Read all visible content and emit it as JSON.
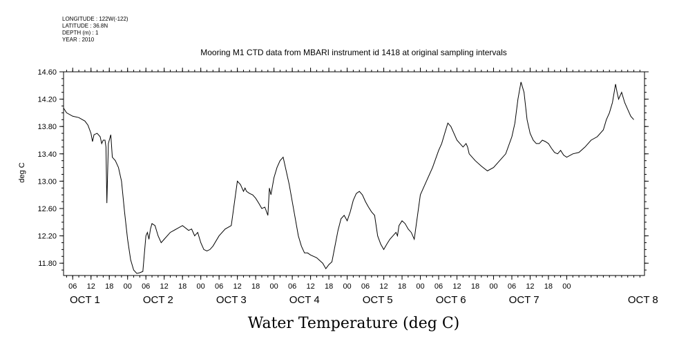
{
  "header": {
    "meta_lines": [
      "LONGITUDE : 122W(-122)",
      "LATITUDE : 36.8N",
      "DEPTH (m) : 1",
      "YEAR : 2010"
    ]
  },
  "chart_data": {
    "type": "line",
    "title": "Mooring M1 CTD data from MBARI instrument id 1418 at original sampling intervals",
    "xlabel": "Water Temperature (deg C)",
    "ylabel": "deg C",
    "xlim": [
      "OCT 1 03:00",
      "OCT 8 01:30"
    ],
    "ylim": [
      11.62,
      14.6
    ],
    "yticks": [
      "11.80",
      "12.20",
      "12.60",
      "13.00",
      "13.40",
      "13.80",
      "14.20",
      "14.60"
    ],
    "hour_tick_labels": [
      "06",
      "12",
      "18",
      "00",
      "06",
      "12",
      "18",
      "00",
      "06",
      "12",
      "18",
      "00",
      "06",
      "12",
      "18",
      "00",
      "06",
      "12",
      "18",
      "00",
      "06",
      "12",
      "18",
      "00",
      "06",
      "12",
      "18",
      "00"
    ],
    "day_labels": [
      "OCT  1",
      "OCT  2",
      "OCT  3",
      "OCT  4",
      "OCT  5",
      "OCT  6",
      "OCT  7",
      "OCT 8"
    ],
    "grid": false,
    "series": [
      {
        "x_hours_since_oct1_0000": [
          3,
          4,
          6,
          8,
          10,
          11,
          12,
          12.5,
          13,
          14,
          15,
          15.5,
          16,
          16.6,
          16.9,
          17.2,
          17.7,
          18,
          18.5,
          19,
          20,
          21,
          22,
          23,
          24,
          25,
          26,
          27,
          28,
          29,
          30,
          30.5,
          31,
          31.5,
          32,
          33,
          34,
          35,
          36,
          38,
          40,
          42,
          44,
          45,
          46,
          47,
          48,
          49,
          50,
          51,
          52,
          54,
          56,
          58,
          60,
          61,
          62,
          62.5,
          63,
          64,
          65,
          66,
          67,
          68,
          69,
          70,
          70.5,
          71,
          72,
          73,
          74,
          75,
          76,
          77,
          78,
          79,
          80,
          81,
          82,
          83,
          84,
          86,
          88,
          89,
          90,
          91,
          92,
          93,
          94,
          95,
          96,
          97,
          98,
          99,
          100,
          101,
          102,
          103,
          104,
          105,
          106,
          107,
          108,
          109,
          110,
          111,
          112,
          112.5,
          113,
          114,
          115,
          116,
          117,
          118,
          120,
          122,
          124,
          126,
          127,
          128,
          129,
          130,
          131,
          132,
          133,
          134,
          135,
          135.5,
          136,
          138,
          140,
          142,
          144,
          146,
          148,
          150,
          151,
          152,
          153,
          154,
          155,
          156,
          157,
          158,
          159,
          160,
          161,
          162,
          163,
          164,
          165,
          166,
          167,
          168,
          170,
          172,
          174,
          176,
          178,
          180,
          181,
          182,
          183,
          184,
          184.5,
          185,
          185.5,
          186,
          187,
          188,
          189,
          190,
          191,
          192,
          193,
          193.5,
          194
        ],
        "values": [
          14.07,
          14.0,
          13.95,
          13.93,
          13.88,
          13.82,
          13.7,
          13.58,
          13.68,
          13.7,
          13.65,
          13.55,
          13.6,
          13.6,
          13.5,
          12.68,
          13.55,
          13.6,
          13.68,
          13.35,
          13.3,
          13.2,
          13.0,
          12.55,
          12.15,
          11.85,
          11.7,
          11.65,
          11.66,
          11.68,
          12.2,
          12.25,
          12.15,
          12.3,
          12.38,
          12.35,
          12.2,
          12.1,
          12.15,
          12.25,
          12.3,
          12.35,
          12.28,
          12.3,
          12.2,
          12.25,
          12.1,
          12.0,
          11.98,
          12.0,
          12.05,
          12.2,
          12.3,
          12.35,
          13.0,
          12.95,
          12.85,
          12.9,
          12.85,
          12.82,
          12.8,
          12.75,
          12.68,
          12.6,
          12.62,
          12.5,
          12.9,
          12.8,
          13.05,
          13.2,
          13.3,
          13.35,
          13.15,
          12.95,
          12.7,
          12.45,
          12.2,
          12.05,
          11.95,
          11.95,
          11.92,
          11.88,
          11.8,
          11.72,
          11.78,
          11.82,
          12.05,
          12.28,
          12.45,
          12.5,
          12.42,
          12.55,
          12.72,
          12.82,
          12.85,
          12.8,
          12.7,
          12.62,
          12.55,
          12.5,
          12.2,
          12.08,
          12.0,
          12.08,
          12.15,
          12.2,
          12.25,
          12.2,
          12.35,
          12.42,
          12.38,
          12.3,
          12.25,
          12.15,
          12.8,
          13.0,
          13.2,
          13.45,
          13.55,
          13.7,
          13.85,
          13.8,
          13.7,
          13.6,
          13.55,
          13.5,
          13.55,
          13.5,
          13.4,
          13.3,
          13.22,
          13.15,
          13.2,
          13.3,
          13.4,
          13.65,
          13.85,
          14.2,
          14.45,
          14.3,
          13.9,
          13.7,
          13.6,
          13.55,
          13.55,
          13.6,
          13.58,
          13.55,
          13.48,
          13.42,
          13.4,
          13.45,
          13.38,
          13.35,
          13.4,
          13.42,
          13.5,
          13.6,
          13.65,
          13.75,
          13.9,
          14.0,
          14.15,
          14.42,
          14.3,
          14.2,
          14.25,
          14.3,
          14.15,
          14.05,
          13.95,
          13.9
        ]
      }
    ]
  },
  "ticks": [
    {
      "x": 0,
      "values": []
    }
  ]
}
